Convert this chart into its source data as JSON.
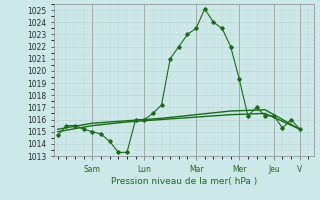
{
  "xlabel": "Pression niveau de la mer( hPa )",
  "bg_color": "#cce8e8",
  "grid_color_major": "#b0c8c8",
  "grid_color_minor": "#c0d8d8",
  "line_color": "#1a6b1a",
  "ylim": [
    1013,
    1025.5
  ],
  "yticks": [
    1013,
    1014,
    1015,
    1016,
    1017,
    1018,
    1019,
    1020,
    1021,
    1022,
    1023,
    1024,
    1025
  ],
  "day_labels": [
    "Sam",
    "Lun",
    "Mar",
    "Mer",
    "Jeu",
    "V"
  ],
  "day_positions": [
    2.0,
    5.0,
    8.0,
    10.5,
    12.5,
    14.0
  ],
  "xlim": [
    -0.2,
    14.8
  ],
  "series1_x": [
    0,
    0.5,
    1.0,
    1.5,
    2.0,
    2.5,
    3.0,
    3.5,
    4.0,
    4.5,
    5.0,
    5.5,
    6.0,
    6.5,
    7.0,
    7.5,
    8.0,
    8.5,
    9.0,
    9.5,
    10.0,
    10.5,
    11.0,
    11.5,
    12.0,
    12.5,
    13.0,
    13.5,
    14.0
  ],
  "series1_y": [
    1014.7,
    1015.5,
    1015.5,
    1015.2,
    1015.0,
    1014.8,
    1014.2,
    1013.3,
    1013.3,
    1016.0,
    1016.0,
    1016.5,
    1017.2,
    1021.0,
    1022.0,
    1023.0,
    1023.5,
    1025.1,
    1024.0,
    1023.5,
    1022.0,
    1019.3,
    1016.3,
    1017.0,
    1016.3,
    1016.3,
    1015.3,
    1016.0,
    1015.2
  ],
  "series2_x": [
    0,
    2.0,
    4.0,
    6.0,
    8.0,
    10.0,
    12.0,
    14.0
  ],
  "series2_y": [
    1015.0,
    1015.5,
    1015.8,
    1016.0,
    1016.2,
    1016.4,
    1016.5,
    1015.2
  ],
  "series3_x": [
    0,
    2.0,
    4.0,
    6.0,
    8.0,
    10.0,
    12.0,
    14.0
  ],
  "series3_y": [
    1015.2,
    1015.7,
    1015.9,
    1016.1,
    1016.4,
    1016.7,
    1016.8,
    1015.2
  ]
}
